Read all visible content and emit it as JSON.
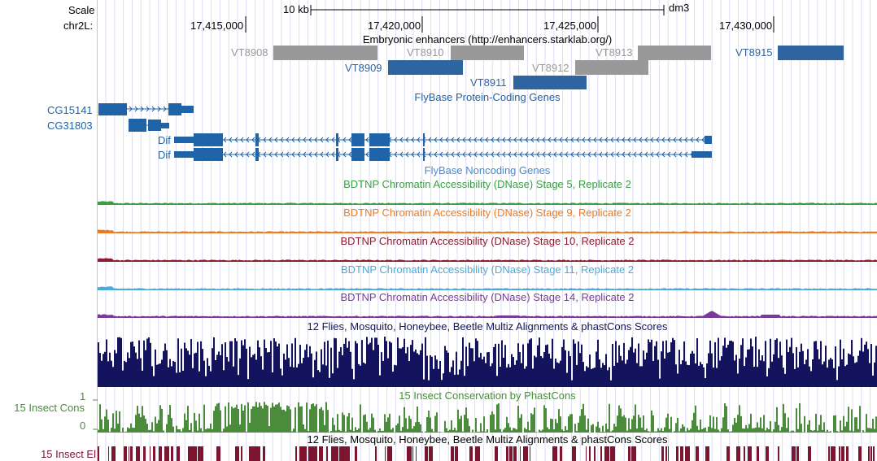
{
  "ruler": {
    "scale_label": "Scale",
    "chrom_label": "chr2L:",
    "scale_bar_text": "10 kb",
    "assembly": "dm3",
    "ticks": [
      "17,415,000",
      "17,420,000",
      "17,425,000",
      "17,430,000"
    ]
  },
  "tracks": {
    "enhancers": {
      "title": "Embryonic enhancers (http://enhancers.starklab.org/)",
      "items": [
        {
          "name": "VT8908",
          "status": "gray"
        },
        {
          "name": "VT8910",
          "status": "gray"
        },
        {
          "name": "VT8913",
          "status": "gray"
        },
        {
          "name": "VT8912",
          "status": "gray"
        },
        {
          "name": "VT8909",
          "status": "blue"
        },
        {
          "name": "VT8911",
          "status": "blue"
        },
        {
          "name": "VT8915",
          "status": "blue"
        }
      ]
    },
    "flybase_coding": {
      "title": "FlyBase Protein-Coding Genes",
      "genes": [
        "CG15141",
        "CG31803",
        "Dif",
        "Dif"
      ]
    },
    "flybase_noncoding": {
      "title": "FlyBase Noncoding Genes"
    },
    "dnase": [
      {
        "title": "BDTNP Chromatin Accessibility (DNase) Stage 5, Replicate 2",
        "color": "#3b9e45"
      },
      {
        "title": "BDTNP Chromatin Accessibility (DNase) Stage 9, Replicate 2",
        "color": "#ec7a22"
      },
      {
        "title": "BDTNP Chromatin Accessibility (DNase) Stage 10, Replicate 2",
        "color": "#8c1c2e"
      },
      {
        "title": "BDTNP Chromatin Accessibility (DNase) Stage 11, Replicate 2",
        "color": "#4fa9d6"
      },
      {
        "title": "BDTNP Chromatin Accessibility (DNase) Stage 14, Replicate 2",
        "color": "#7a3a9a"
      }
    ],
    "multiz": {
      "title": "12 Flies, Mosquito, Honeybee, Beetle Multiz Alignments & phastCons Scores",
      "color": "#14145e"
    },
    "insect_cons": {
      "title": "15 Insect Conservation by PhastCons",
      "label": "15 Insect Cons",
      "y_max": "1",
      "y_min": "0",
      "color": "#4a8c3c"
    },
    "insect_el": {
      "title": "12 Flies, Mosquito, Honeybee, Beetle Multiz Alignments & phastCons Scores",
      "label": "15 Insect El",
      "color": "#7d1530"
    }
  },
  "colors": {
    "gene_blue": "#1f63a8",
    "enh_gray": "#999999",
    "enh_blue": "#2e64a0",
    "grid": "#ccccf0"
  }
}
